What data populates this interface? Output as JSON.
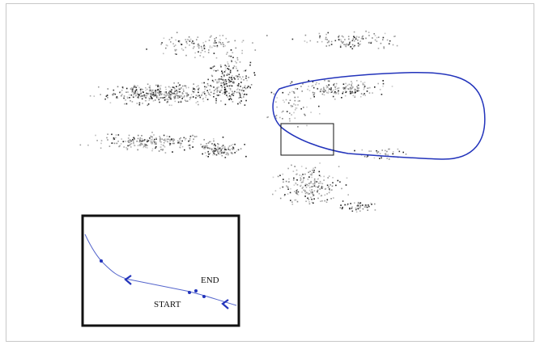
{
  "figure": {
    "inset": {
      "start_label": "START",
      "end_label": "END"
    }
  },
  "colors": {
    "trajectory": "#2233bb",
    "points_dark": "#111111",
    "points_light": "#9a9a9a",
    "inset_border": "#111111",
    "zoom_box": "#111111"
  }
}
